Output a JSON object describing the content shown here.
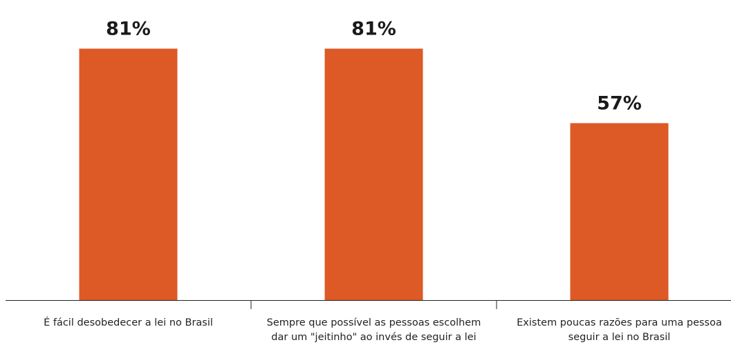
{
  "chart_data": {
    "type": "bar",
    "categories": [
      [
        "É fácil desobedecer a lei no Brasil"
      ],
      [
        "Sempre que possível as pessoas escolhem",
        "dar um \"jeitinho\" ao invés de seguir a lei"
      ],
      [
        "Existem poucas razões para uma pessoa",
        "seguir a lei no Brasil"
      ]
    ],
    "values": [
      81,
      81,
      57
    ],
    "value_labels": [
      "81%",
      "81%",
      "57%"
    ],
    "ylim": [
      0,
      100
    ],
    "bar_color": "#dd5a27",
    "axis_color": "#222222",
    "grid": false
  }
}
